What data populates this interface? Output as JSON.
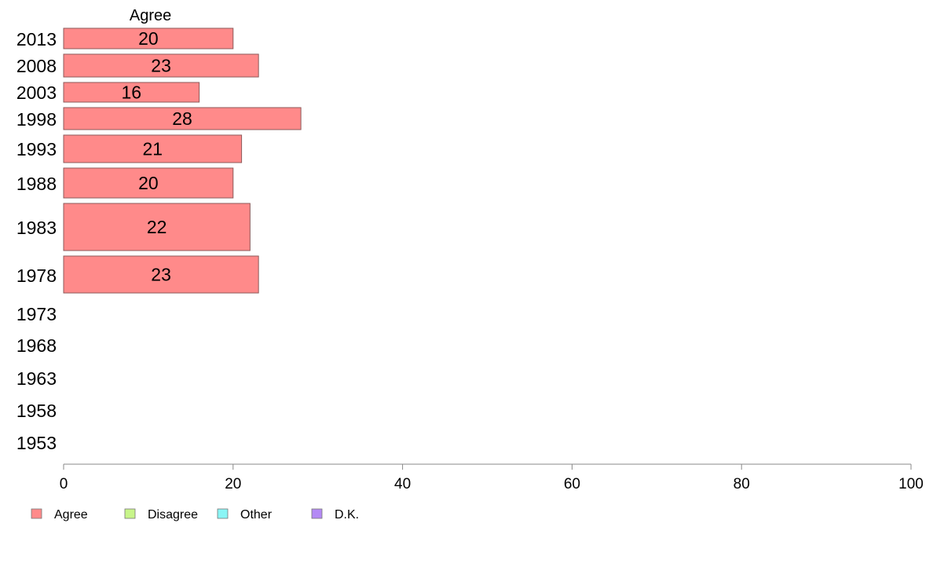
{
  "chart_data": {
    "type": "bar",
    "orientation": "horizontal",
    "categories": [
      "2013",
      "2008",
      "2003",
      "1998",
      "1993",
      "1988",
      "1983",
      "1978",
      "1973",
      "1968",
      "1963",
      "1958",
      "1953"
    ],
    "series": [
      {
        "name": "Agree",
        "values": [
          20,
          23,
          16,
          28,
          21,
          20,
          22,
          23,
          null,
          null,
          null,
          null,
          null
        ]
      }
    ],
    "column_title": "Agree",
    "xlim": [
      0,
      100
    ],
    "x_ticks": [
      0,
      20,
      40,
      60,
      80,
      100
    ],
    "grid": false,
    "legend_placement": "bottom-left",
    "legend": [
      {
        "label": "Agree",
        "color": "#ff8a8a"
      },
      {
        "label": "Disagree",
        "color": "#c8f58a"
      },
      {
        "label": "Other",
        "color": "#8af5f5"
      },
      {
        "label": "D.K.",
        "color": "#b48af5"
      }
    ],
    "bar_color": "#ff8a8a",
    "bar_stroke": "#8c5a5a"
  }
}
